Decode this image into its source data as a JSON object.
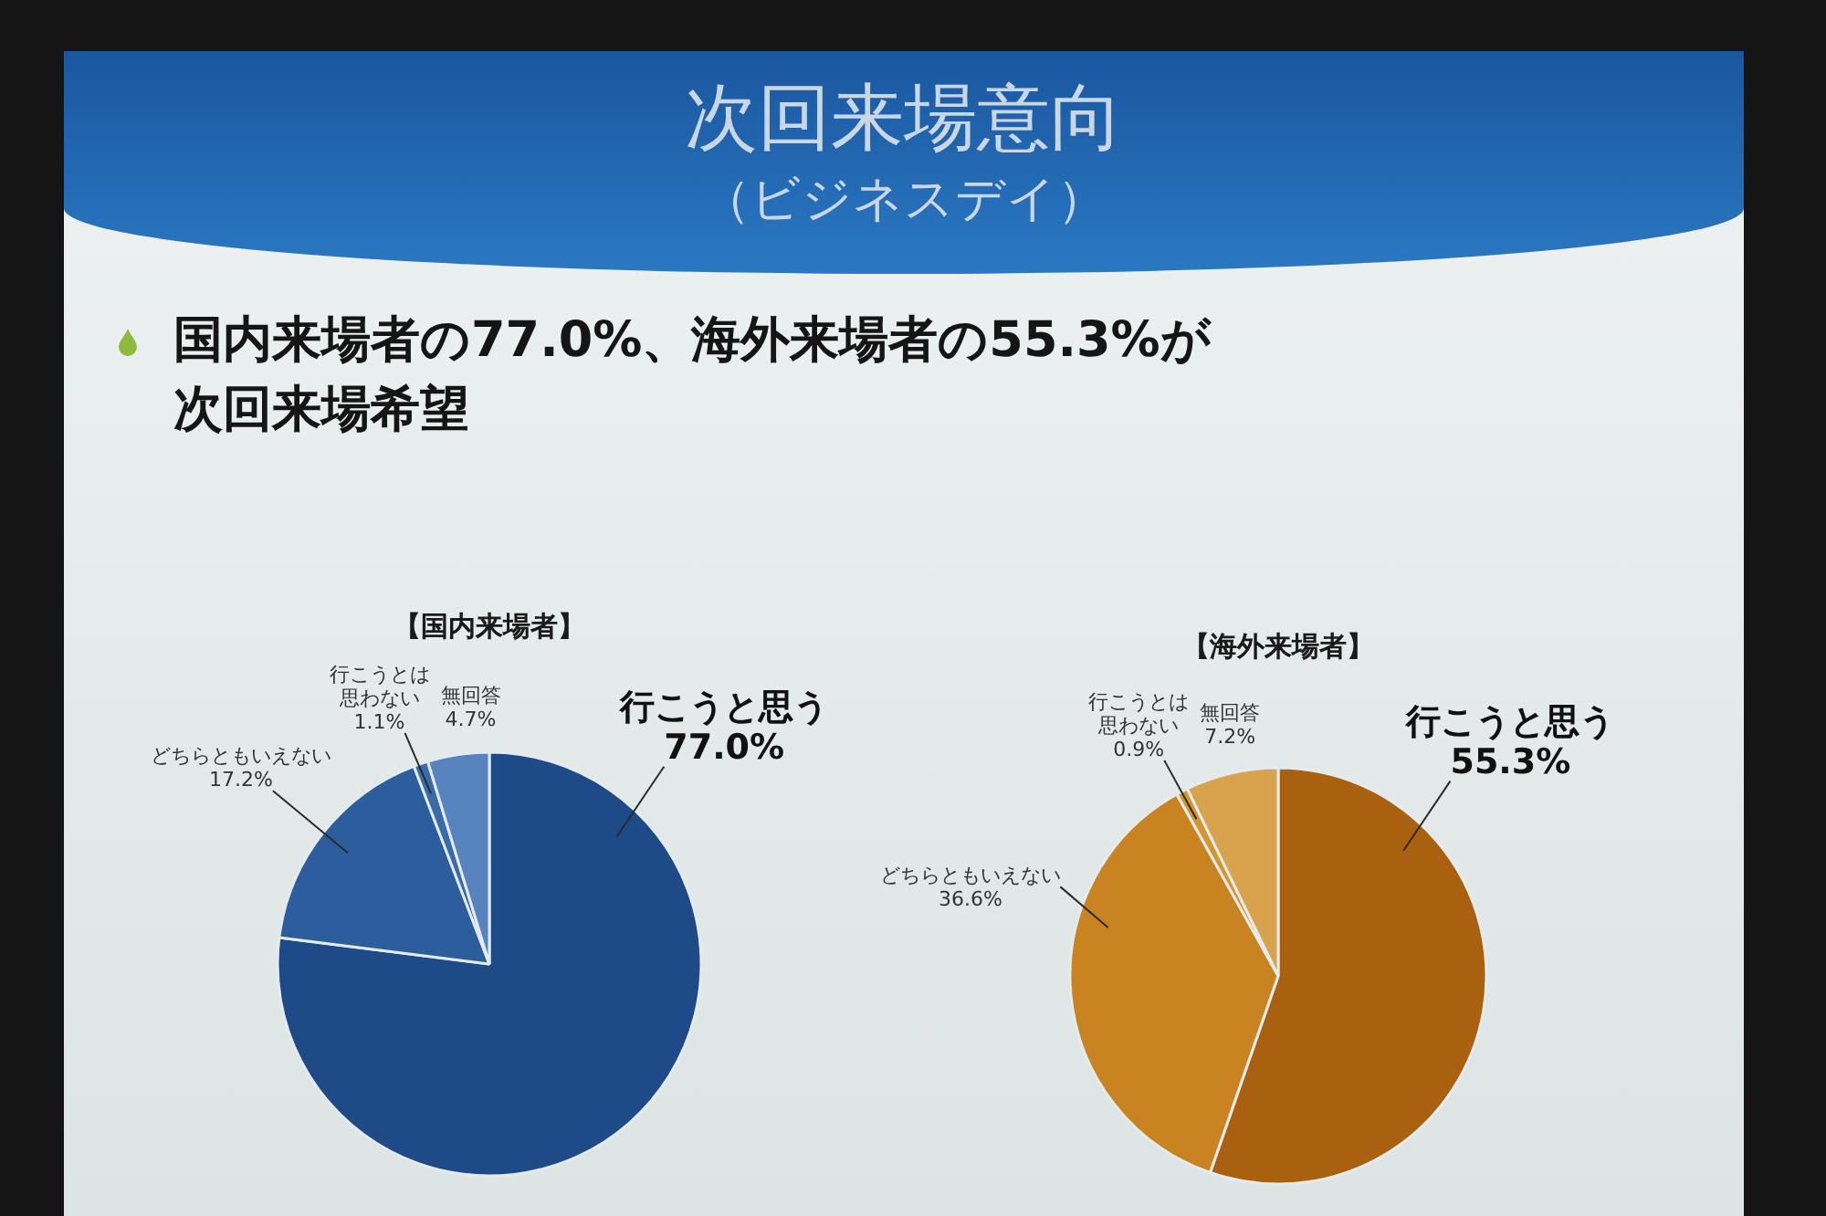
{
  "chart_data": [
    {
      "type": "other",
      "title": "次回来場意向",
      "subtitle": "（ビジネスデイ）",
      "annotations": [
        "国内来場者の77.0%、海外来場者の55.3%が次回来場希望"
      ]
    },
    {
      "type": "pie",
      "title": "【国内来場者】",
      "categories": [
        "行こうと思う",
        "どちらともいえない",
        "行こうとは思わない",
        "無回答"
      ],
      "values": [
        77.0,
        17.2,
        1.1,
        4.7
      ],
      "value_labels": [
        "77.0%",
        "17.2%",
        "1.1%",
        "4.7%"
      ],
      "colors": [
        "#1f4a88",
        "#2c5e9e",
        "#3a6aa8",
        "#5784bf"
      ]
    },
    {
      "type": "pie",
      "title": "【海外来場者】",
      "categories": [
        "行こうと思う",
        "どちらともいえない",
        "行こうとは思わない",
        "無回答"
      ],
      "values": [
        55.3,
        36.6,
        0.9,
        7.2
      ],
      "value_labels": [
        "55.3%",
        "36.6%",
        "0.9%",
        "7.2%"
      ],
      "colors": [
        "#a9600f",
        "#c98320",
        "#d4962e",
        "#d9a24c"
      ]
    }
  ]
}
